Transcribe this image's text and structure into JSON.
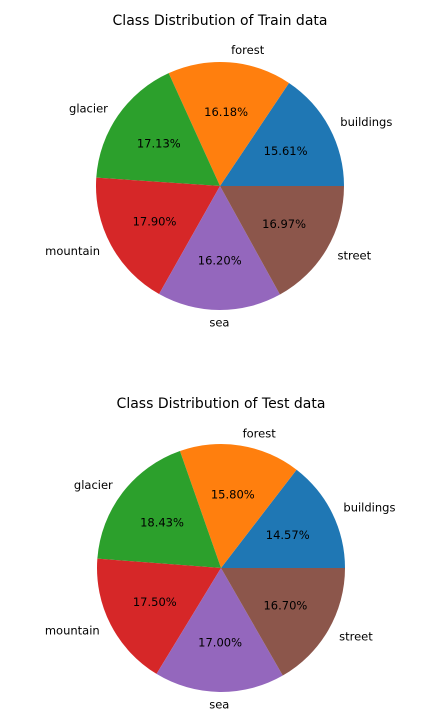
{
  "chart_data": [
    {
      "type": "pie",
      "title": "Class Distribution of Train data",
      "categories": [
        "buildings",
        "forest",
        "glacier",
        "mountain",
        "sea",
        "street"
      ],
      "values": [
        15.61,
        16.18,
        17.13,
        17.9,
        16.2,
        16.97
      ],
      "value_labels": [
        "15.61%",
        "16.18%",
        "17.13%",
        "17.90%",
        "16.20%",
        "16.97%"
      ],
      "colors": [
        "#1f77b4",
        "#ff7f0e",
        "#2ca02c",
        "#d62728",
        "#9467bd",
        "#8c564b"
      ],
      "start_angle_deg": 0,
      "direction": "counterclockwise",
      "legend": "none"
    },
    {
      "type": "pie",
      "title": "Class Distribution of Test data",
      "categories": [
        "buildings",
        "forest",
        "glacier",
        "mountain",
        "sea",
        "street"
      ],
      "values": [
        14.57,
        15.8,
        18.43,
        17.5,
        17.0,
        16.7
      ],
      "value_labels": [
        "14.57%",
        "15.80%",
        "18.43%",
        "17.50%",
        "17.00%",
        "16.70%"
      ],
      "colors": [
        "#1f77b4",
        "#ff7f0e",
        "#2ca02c",
        "#d62728",
        "#9467bd",
        "#8c564b"
      ],
      "start_angle_deg": 0,
      "direction": "counterclockwise",
      "legend": "none"
    }
  ]
}
